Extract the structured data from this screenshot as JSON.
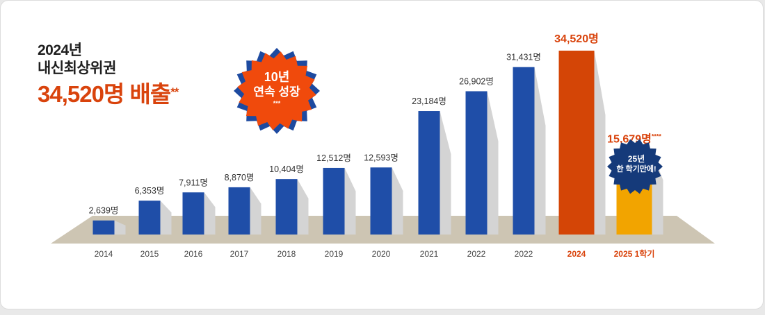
{
  "headline": {
    "year_line": "2024년",
    "rank_line": "내신최상위권",
    "big_line": "34,520명 배출",
    "big_mark": "**"
  },
  "badges": {
    "growth_line1": "10년",
    "growth_line2": "연속 성장",
    "growth_mark": "***",
    "half_line1": "25년",
    "half_line2": "한 학기만에!"
  },
  "colors": {
    "bar_blue": "#1f4ea8",
    "bar_highlight": "#d44506",
    "bar_partial": "#f2a400",
    "label_orange": "#d9430c",
    "badge_orange": "#f04a0c",
    "badge_navy": "#153a7a",
    "floor": "#cdc5b3"
  },
  "chart_data": {
    "type": "bar",
    "categories": [
      "2014",
      "2015",
      "2016",
      "2017",
      "2018",
      "2019",
      "2020",
      "2021",
      "2022",
      "2022",
      "2024",
      "2025 1학기"
    ],
    "values": [
      2639,
      6353,
      7911,
      8870,
      10404,
      12512,
      12593,
      23184,
      26902,
      31431,
      34520,
      15679
    ],
    "value_labels": [
      "2,639명",
      "6,353명",
      "7,911명",
      "8,870명",
      "10,404명",
      "12,512명",
      "12,593명",
      "23,184명",
      "26,902명",
      "31,431명",
      "34,520명",
      "15,679명"
    ],
    "value_label_marks": [
      "",
      "",
      "",
      "",
      "",
      "",
      "",
      "",
      "",
      "",
      "",
      "****"
    ],
    "highlight": [
      false,
      false,
      false,
      false,
      false,
      false,
      false,
      false,
      false,
      false,
      true,
      true
    ],
    "title": "",
    "xlabel": "",
    "ylabel": "",
    "ylim": [
      0,
      36000
    ],
    "grid": false,
    "legend": "none"
  }
}
